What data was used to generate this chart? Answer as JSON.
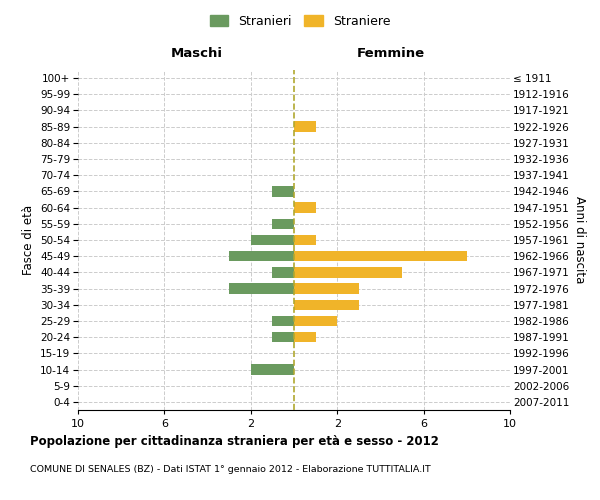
{
  "age_groups": [
    "0-4",
    "5-9",
    "10-14",
    "15-19",
    "20-24",
    "25-29",
    "30-34",
    "35-39",
    "40-44",
    "45-49",
    "50-54",
    "55-59",
    "60-64",
    "65-69",
    "70-74",
    "75-79",
    "80-84",
    "85-89",
    "90-94",
    "95-99",
    "100+"
  ],
  "birth_years": [
    "2007-2011",
    "2002-2006",
    "1997-2001",
    "1992-1996",
    "1987-1991",
    "1982-1986",
    "1977-1981",
    "1972-1976",
    "1967-1971",
    "1962-1966",
    "1957-1961",
    "1952-1956",
    "1947-1951",
    "1942-1946",
    "1937-1941",
    "1932-1936",
    "1927-1931",
    "1922-1926",
    "1917-1921",
    "1912-1916",
    "≤ 1911"
  ],
  "maschi": [
    0,
    0,
    2,
    0,
    1,
    1,
    0,
    3,
    1,
    3,
    2,
    1,
    0,
    1,
    0,
    0,
    0,
    0,
    0,
    0,
    0
  ],
  "femmine": [
    0,
    0,
    0,
    0,
    1,
    2,
    3,
    3,
    5,
    8,
    1,
    0,
    1,
    0,
    0,
    0,
    0,
    1,
    0,
    0,
    0
  ],
  "male_color": "#6a9a5f",
  "female_color": "#f0b429",
  "center_line_color": "#b0a830",
  "grid_color": "#cccccc",
  "bg_color": "#ffffff",
  "title": "Popolazione per cittadinanza straniera per età e sesso - 2012",
  "subtitle": "COMUNE DI SENALES (BZ) - Dati ISTAT 1° gennaio 2012 - Elaborazione TUTTITALIA.IT",
  "xlabel_left": "Maschi",
  "xlabel_right": "Femmine",
  "ylabel_left": "Fasce di età",
  "ylabel_right": "Anni di nascita",
  "legend_stranieri": "Stranieri",
  "legend_straniere": "Straniere",
  "xlim": 10,
  "bar_height": 0.65
}
